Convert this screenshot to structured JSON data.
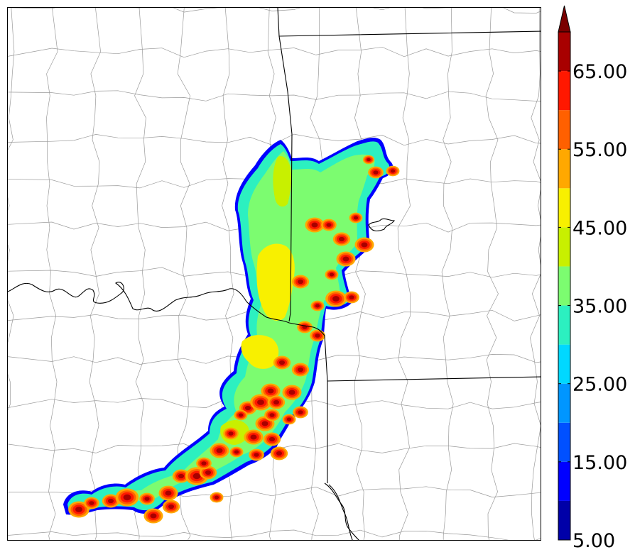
{
  "map": {
    "county_line_color": "#9a9a9a",
    "state_line_color": "#000000",
    "background": "#ffffff"
  },
  "colorbar": {
    "levels": [
      5,
      10,
      15,
      20,
      25,
      30,
      35,
      40,
      45,
      50,
      55,
      60,
      65,
      70
    ],
    "colors": [
      "#0000a8",
      "#0000ff",
      "#0050ff",
      "#0096ff",
      "#00d8ff",
      "#2cf0c0",
      "#7cfc70",
      "#c8f000",
      "#f8f000",
      "#ffa800",
      "#ff6000",
      "#ff1800",
      "#a80000"
    ],
    "extend_color": "#7a0000",
    "tick_labels": [
      "65.00",
      "55.00",
      "45.00",
      "35.00",
      "25.00",
      "15.00",
      "5.00"
    ]
  }
}
